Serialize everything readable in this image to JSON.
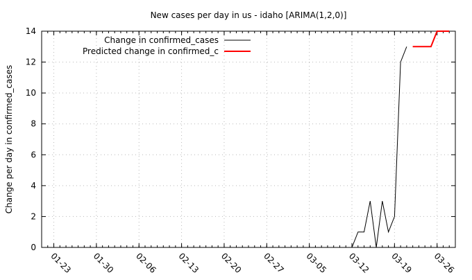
{
  "chart_data": {
    "type": "line",
    "title": "New cases per day in us - idaho [ARIMA(1,2,0)]",
    "xlabel": "",
    "ylabel": "Change per day in confirmed_cases",
    "ylim": [
      0,
      14
    ],
    "y_ticks": [
      0,
      2,
      4,
      6,
      8,
      10,
      12,
      14
    ],
    "x_range": [
      "2020-01-21",
      "2020-03-29"
    ],
    "x_ticks": [
      {
        "date": "2020-01-23",
        "label": "01-23"
      },
      {
        "date": "2020-01-30",
        "label": "01-30"
      },
      {
        "date": "2020-02-06",
        "label": "02-06"
      },
      {
        "date": "2020-02-13",
        "label": "02-13"
      },
      {
        "date": "2020-02-20",
        "label": "02-20"
      },
      {
        "date": "2020-02-27",
        "label": "02-27"
      },
      {
        "date": "2020-03-05",
        "label": "03-05"
      },
      {
        "date": "2020-03-12",
        "label": "03-12"
      },
      {
        "date": "2020-03-19",
        "label": "03-19"
      },
      {
        "date": "2020-03-26",
        "label": "03-26"
      }
    ],
    "grid": true,
    "legend_position": "top-right",
    "series": [
      {
        "name": "Change in confirmed_cases",
        "color": "#000000",
        "points": [
          {
            "x": "2020-03-12",
            "y": 0
          },
          {
            "x": "2020-03-13",
            "y": 1
          },
          {
            "x": "2020-03-14",
            "y": 1
          },
          {
            "x": "2020-03-15",
            "y": 3
          },
          {
            "x": "2020-03-16",
            "y": 0
          },
          {
            "x": "2020-03-17",
            "y": 3
          },
          {
            "x": "2020-03-18",
            "y": 1
          },
          {
            "x": "2020-03-19",
            "y": 2
          },
          {
            "x": "2020-03-20",
            "y": 12
          },
          {
            "x": "2020-03-21",
            "y": 13
          }
        ]
      },
      {
        "name": "Predicted change in confirmed_c",
        "color": "#ff0000",
        "points": [
          {
            "x": "2020-03-22",
            "y": 13
          },
          {
            "x": "2020-03-23",
            "y": 13
          },
          {
            "x": "2020-03-24",
            "y": 13
          },
          {
            "x": "2020-03-25",
            "y": 13
          },
          {
            "x": "2020-03-26",
            "y": 14
          },
          {
            "x": "2020-03-27",
            "y": 14
          },
          {
            "x": "2020-03-28",
            "y": 14
          }
        ]
      }
    ]
  }
}
